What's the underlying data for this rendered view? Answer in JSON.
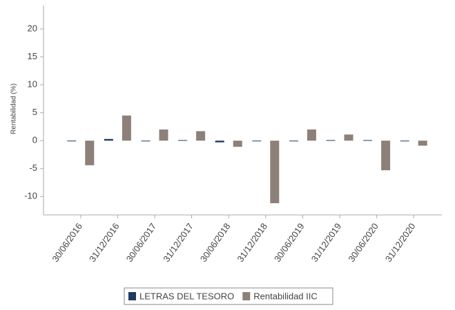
{
  "chart_data": {
    "type": "bar",
    "y_label": "Rentabilidad (%)",
    "categories": [
      "30/06/2016",
      "31/12/2016",
      "30/06/2017",
      "31/12/2017",
      "30/06/2018",
      "31/12/2018",
      "30/06/2019",
      "31/12/2019",
      "30/06/2020",
      "31/12/2020"
    ],
    "series": [
      {
        "name": "LETRAS DEL TESORO",
        "color": "#1f3a63",
        "values": [
          -0.05,
          0.3,
          -0.1,
          0.1,
          -0.3,
          -0.1,
          -0.05,
          0.1,
          0.1,
          -0.05
        ]
      },
      {
        "name": "Rentabilidad IIC",
        "color": "#8c8079",
        "values": [
          -4.4,
          4.5,
          2.0,
          1.7,
          -1.1,
          -11.2,
          2.0,
          1.1,
          -5.3,
          -0.9
        ]
      }
    ],
    "ylim": [
      -13.3,
      24.2
    ],
    "yticks": [
      -10,
      -5,
      0,
      5,
      10,
      15,
      20
    ],
    "legend": "bottom"
  }
}
